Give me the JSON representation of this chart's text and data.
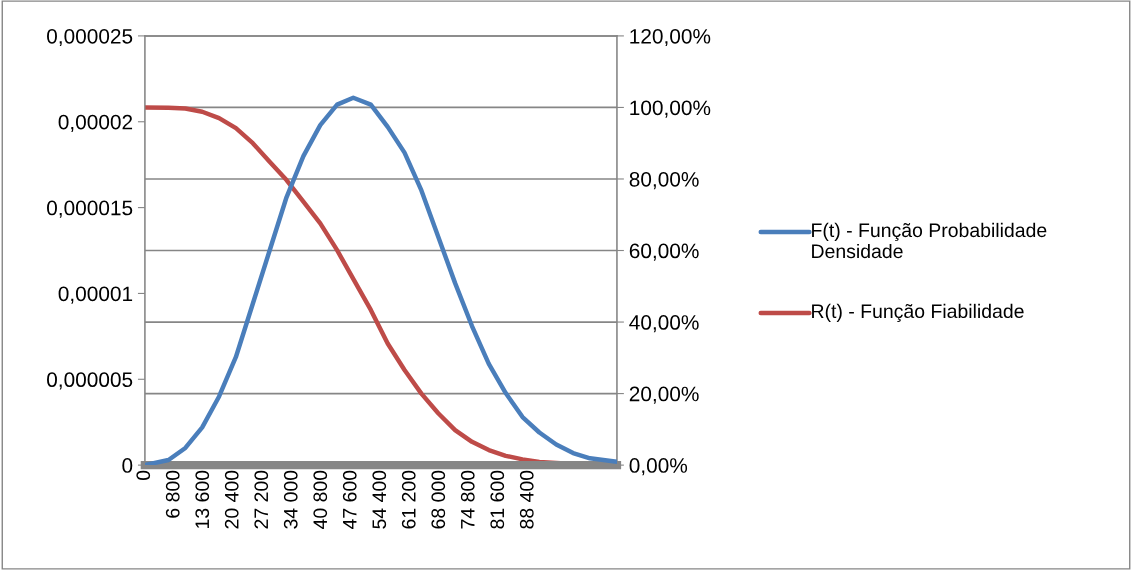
{
  "chart_data": {
    "type": "line",
    "legend": "right",
    "grid": true,
    "marker": "none",
    "line_style": "solid",
    "xlim": [
      0,
      108800
    ],
    "xticks": [
      0,
      {
        "value": 6800,
        "label": "6 800"
      },
      {
        "value": 13600,
        "label": "13 600"
      },
      {
        "value": 20400,
        "label": "20 400"
      },
      {
        "value": 27200,
        "label": "27 200"
      },
      {
        "value": 34000,
        "label": "34 000"
      },
      {
        "value": 40800,
        "label": "40 800"
      },
      {
        "value": 47600,
        "label": "47 600"
      },
      {
        "value": 54400,
        "label": "54 400"
      },
      {
        "value": 61200,
        "label": "61 200"
      },
      {
        "value": 68000,
        "label": "68 000"
      },
      {
        "value": 74800,
        "label": "74 800"
      },
      {
        "value": 81600,
        "label": "81 600"
      },
      {
        "value": 88400,
        "label": "88 400"
      }
    ],
    "ylim": [
      0,
      2.5e-05
    ],
    "yticks": [
      0,
      {
        "value": 5e-06,
        "label": "0,000005"
      },
      {
        "value": 1e-05,
        "label": "0,00001"
      },
      {
        "value": 1.5e-05,
        "label": "0,000015"
      },
      {
        "value": 2e-05,
        "label": "0,00002"
      },
      {
        "value": 2.5e-05,
        "label": "0,000025"
      }
    ],
    "y2lim": [
      0,
      120
    ],
    "y2ticks": [
      {
        "value": 0,
        "label": "0,00%"
      },
      {
        "value": 20,
        "label": "20,00%"
      },
      {
        "value": 40,
        "label": "40,00%"
      },
      {
        "value": 60,
        "label": "60,00%"
      },
      {
        "value": 80,
        "label": "80,00%"
      },
      {
        "value": 100,
        "label": "100,00%"
      },
      {
        "value": 120,
        "label": "120,00%"
      }
    ],
    "series": [
      {
        "name": "F(t) - Função Probabilidade Densidade",
        "color": "#4a7ebb",
        "x": [
          0,
          5440,
          9325,
          13210,
          17100,
          20980,
          24870,
          28750,
          32640,
          36530,
          40420,
          44300,
          48030,
          52070,
          55960,
          59840,
          63730,
          67610,
          71500,
          75390,
          79270,
          83160,
          87040,
          90920,
          94810,
          98690,
          102580,
          108800
        ],
        "values": [
          0,
          3e-07,
          1e-06,
          2.2e-06,
          4e-06,
          6.3e-06,
          9.4e-06,
          1.25e-05,
          1.56e-05,
          1.8e-05,
          1.98e-05,
          2.1e-05,
          2.14e-05,
          2.1e-05,
          1.97e-05,
          1.82e-05,
          1.6e-05,
          1.33e-05,
          1.06e-05,
          8.1e-06,
          5.9e-06,
          4.2e-06,
          2.8e-06,
          1.9e-06,
          1.2e-06,
          7e-07,
          4e-07,
          2e-07
        ]
      },
      {
        "name": "R(t) - Função Fiabilidade",
        "color": "#be4b48",
        "axis": "y2",
        "x": [
          0,
          5440,
          9325,
          13210,
          17100,
          20980,
          24870,
          28750,
          32640,
          36530,
          40420,
          44300,
          48190,
          52070,
          55960,
          59840,
          63730,
          67610,
          71500,
          75390,
          79270,
          83160,
          87040,
          90920,
          98690,
          108800
        ],
        "values": [
          100.0,
          99.9,
          99.7,
          98.8,
          97.0,
          94.2,
          90.0,
          84.8,
          79.7,
          73.7,
          67.6,
          60.1,
          51.7,
          43.4,
          34.0,
          26.6,
          20.0,
          14.5,
          9.8,
          6.5,
          4.2,
          2.6,
          1.6,
          0.9,
          0.3,
          0
        ]
      }
    ]
  }
}
